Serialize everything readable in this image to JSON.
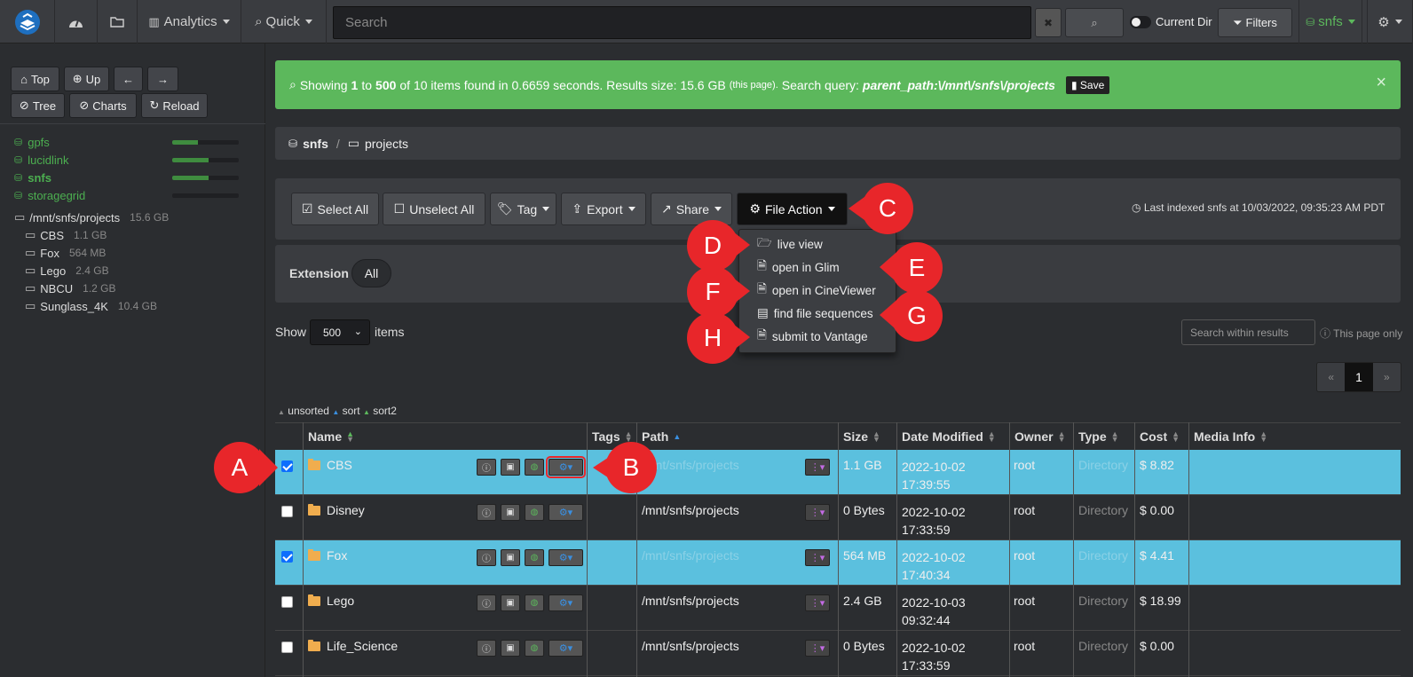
{
  "nav": {
    "analytics": "Analytics",
    "quick": "Quick",
    "search_placeholder": "Search",
    "clear": "✖",
    "current_dir": "Current Dir",
    "filters": "Filters",
    "volume": "snfs"
  },
  "sidebar": {
    "buttons": {
      "top": "Top",
      "up": "Up",
      "tree": "Tree",
      "charts": "Charts",
      "reload": "Reload"
    },
    "volumes": [
      {
        "name": "gpfs",
        "usage": 0.38
      },
      {
        "name": "lucidlink",
        "usage": 0.55
      },
      {
        "name": "snfs",
        "usage": 0.55
      },
      {
        "name": "storagegrid",
        "usage": 0.0
      }
    ],
    "tree_root": {
      "path": "/mnt/snfs/projects",
      "size": "15.6 GB"
    },
    "tree": [
      {
        "name": "CBS",
        "size": "1.1 GB"
      },
      {
        "name": "Fox",
        "size": "564 MB"
      },
      {
        "name": "Lego",
        "size": "2.4 GB"
      },
      {
        "name": "NBCU",
        "size": "1.2 GB"
      },
      {
        "name": "Sunglass_4K",
        "size": "10.4 GB"
      }
    ]
  },
  "alert": {
    "showing": "Showing",
    "from": "1",
    "to_word": "to",
    "to": "500",
    "rest": "of 10 items found in 0.6659 seconds. Results size: 15.6 GB",
    "this_page": "(this page).",
    "query_label": "Search query:",
    "query": "parent_path:\\/mnt\\/snfs\\/projects",
    "save": "Save",
    "close": "×"
  },
  "breadcrumb": {
    "root": "snfs",
    "sep": "/",
    "folder": "projects"
  },
  "toolbar": {
    "select_all": "Select All",
    "unselect_all": "Unselect All",
    "tag": "Tag",
    "export": "Export",
    "share": "Share",
    "file_action": "File Action",
    "last_indexed": "Last indexed snfs at 10/03/2022, 09:35:23 AM PDT"
  },
  "file_action_menu": [
    "live view",
    "open in Glim",
    "open in CineViewer",
    "find file sequences",
    "submit to Vantage"
  ],
  "extension": {
    "label": "Extension",
    "all": "All"
  },
  "paging": {
    "show": "Show",
    "page_size": "500",
    "items": "items",
    "search_within": "Search within results",
    "this_page_only": "This page only",
    "prev": "«",
    "page": "1",
    "next": "»"
  },
  "sort_legend": {
    "unsorted": "unsorted",
    "sort": "sort",
    "sort2": "sort2"
  },
  "columns": [
    "Name",
    "Tags",
    "Path",
    "Size",
    "Date Modified",
    "Owner",
    "Type",
    "Cost",
    "Media Info"
  ],
  "rows": [
    {
      "selected": true,
      "name": "CBS",
      "path": "/mnt/snfs/projects",
      "size": "1.1 GB",
      "date": "2022-10-02",
      "time": "17:39:55",
      "owner": "root",
      "type": "Directory",
      "cost": "$ 8.82"
    },
    {
      "selected": false,
      "name": "Disney",
      "path": "/mnt/snfs/projects",
      "size": "0 Bytes",
      "date": "2022-10-02",
      "time": "17:33:59",
      "owner": "root",
      "type": "Directory",
      "cost": "$ 0.00"
    },
    {
      "selected": true,
      "name": "Fox",
      "path": "/mnt/snfs/projects",
      "size": "564 MB",
      "date": "2022-10-02",
      "time": "17:40:34",
      "owner": "root",
      "type": "Directory",
      "cost": "$ 4.41"
    },
    {
      "selected": false,
      "name": "Lego",
      "path": "/mnt/snfs/projects",
      "size": "2.4 GB",
      "date": "2022-10-03",
      "time": "09:32:44",
      "owner": "root",
      "type": "Directory",
      "cost": "$ 18.99"
    },
    {
      "selected": false,
      "name": "Life_Science",
      "path": "/mnt/snfs/projects",
      "size": "0 Bytes",
      "date": "2022-10-02",
      "time": "17:33:59",
      "owner": "root",
      "type": "Directory",
      "cost": "$ 0.00"
    }
  ],
  "callouts": [
    "A",
    "B",
    "C",
    "D",
    "E",
    "F",
    "G",
    "H"
  ],
  "colors": {
    "accent_green": "#5cb85c",
    "selected_row": "#5bc0de",
    "callout_red": "#e8262a"
  }
}
